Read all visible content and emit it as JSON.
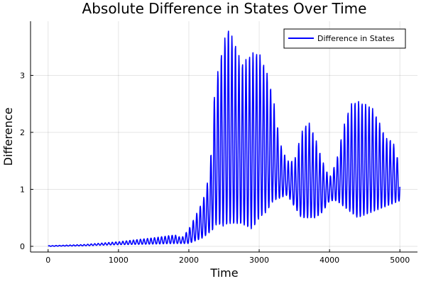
{
  "chart_data": {
    "type": "line",
    "title": "Absolute Difference in States Over Time",
    "xlabel": "Time",
    "ylabel": "Difference",
    "xlim": [
      -250,
      5250
    ],
    "ylim": [
      -0.1,
      3.95
    ],
    "xticks": [
      0,
      1000,
      2000,
      3000,
      4000,
      5000
    ],
    "yticks": [
      0,
      1,
      2,
      3
    ],
    "grid": true,
    "legend": {
      "placement": "top-right",
      "entries": [
        "Difference in States"
      ]
    },
    "series": [
      {
        "name": "Difference in States",
        "color": "#0000ff",
        "oscillation_period": 50,
        "envelope_t": [
          0,
          500,
          1000,
          1500,
          1800,
          1900,
          2000,
          2200,
          2300,
          2350,
          2400,
          2500,
          2550,
          2650,
          2750,
          2900,
          3000,
          3100,
          3200,
          3300,
          3400,
          3500,
          3600,
          3700,
          3800,
          3900,
          4000,
          4100,
          4200,
          4300,
          4400,
          4500,
          4600,
          4700,
          4800,
          4900,
          5000
        ],
        "upper": [
          0.01,
          0.03,
          0.08,
          0.15,
          0.2,
          0.15,
          0.3,
          0.8,
          1.3,
          2.5,
          3.0,
          3.6,
          3.85,
          3.6,
          3.2,
          3.4,
          3.4,
          3.1,
          2.6,
          1.8,
          1.5,
          1.5,
          2.0,
          2.2,
          1.9,
          1.5,
          1.2,
          1.5,
          2.1,
          2.5,
          2.55,
          2.5,
          2.45,
          2.2,
          1.9,
          1.85,
          1.4
        ],
        "lower": [
          0,
          0.01,
          0.03,
          0.04,
          0.05,
          0.05,
          0.05,
          0.15,
          0.25,
          0.3,
          0.4,
          0.35,
          0.4,
          0.4,
          0.4,
          0.3,
          0.5,
          0.6,
          0.8,
          0.85,
          0.9,
          0.7,
          0.5,
          0.5,
          0.5,
          0.6,
          0.8,
          0.8,
          0.7,
          0.6,
          0.5,
          0.55,
          0.6,
          0.65,
          0.7,
          0.75,
          0.8
        ]
      }
    ]
  }
}
